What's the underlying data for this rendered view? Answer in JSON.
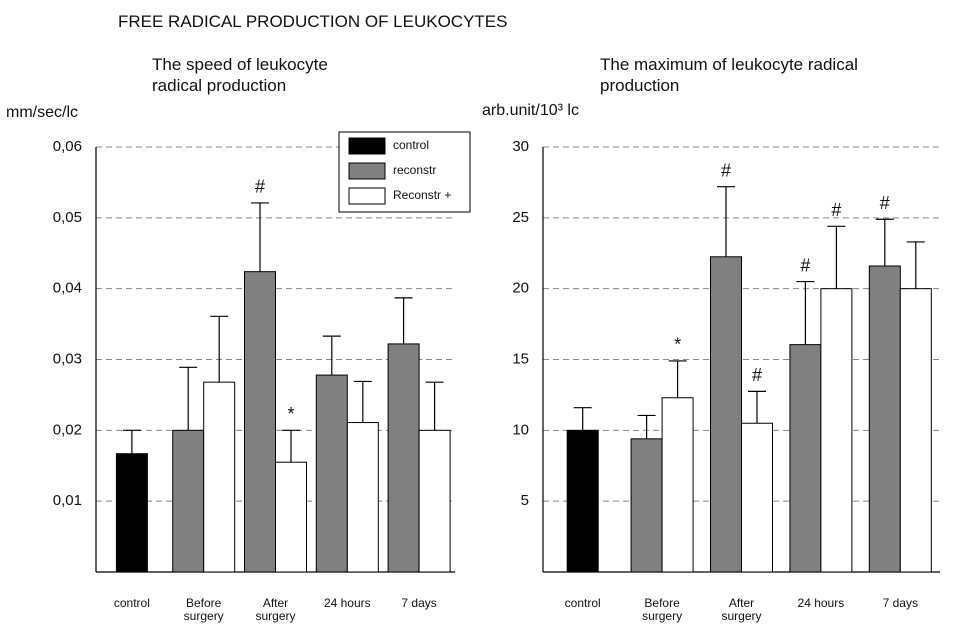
{
  "title": "FREE RADICAL PRODUCTION OF LEUKOCYTES",
  "chart_data": [
    {
      "type": "bar",
      "title": "The speed of leukocyte radical production",
      "y_label": "mm/sec/lc",
      "categories": [
        "control",
        "Before surgery",
        "After surgery",
        "24 hours",
        "7 days"
      ],
      "series": [
        {
          "name": "control",
          "color": "#000000",
          "values": [
            0.0167,
            null,
            null,
            null,
            null
          ],
          "errors": [
            0.0033,
            null,
            null,
            null,
            null
          ],
          "markers": [
            null,
            null,
            null,
            null,
            null
          ]
        },
        {
          "name": "reconstr",
          "color": "#808080",
          "values": [
            null,
            0.02,
            0.0424,
            0.0278,
            0.0322
          ],
          "errors": [
            null,
            0.0089,
            0.0097,
            0.0055,
            0.0065
          ],
          "markers": [
            null,
            null,
            "#",
            null,
            null
          ]
        },
        {
          "name": "Reconstr +",
          "color": "#ffffff",
          "values": [
            null,
            0.0268,
            0.0155,
            0.0211,
            0.02
          ],
          "errors": [
            null,
            0.0093,
            0.0045,
            0.0058,
            0.0068
          ],
          "markers": [
            null,
            null,
            "*",
            null,
            null
          ]
        }
      ],
      "ylim": [
        0,
        0.06
      ],
      "yticks": [
        {
          "value": 0.01,
          "label": "0,01"
        },
        {
          "value": 0.02,
          "label": "0,02"
        },
        {
          "value": 0.03,
          "label": "0,03"
        },
        {
          "value": 0.04,
          "label": "0,04"
        },
        {
          "value": 0.05,
          "label": "0,05"
        },
        {
          "value": 0.06,
          "label": "0,06"
        }
      ],
      "grid": true,
      "legend": "top-right"
    },
    {
      "type": "bar",
      "title": "The maximum of leukocyte radical production",
      "y_label": "arb.unit/10³ lc",
      "categories": [
        "control",
        "Before surgery",
        "After surgery",
        "24 hours",
        "7 days"
      ],
      "series": [
        {
          "name": "control",
          "color": "#000000",
          "values": [
            10,
            null,
            null,
            null,
            null
          ],
          "errors": [
            1.6,
            null,
            null,
            null,
            null
          ],
          "markers": [
            null,
            null,
            null,
            null,
            null
          ]
        },
        {
          "name": "reconstr",
          "color": "#808080",
          "values": [
            null,
            9.4,
            22.25,
            16.05,
            21.6
          ],
          "errors": [
            null,
            1.65,
            4.95,
            4.45,
            3.3
          ],
          "markers": [
            null,
            null,
            "#",
            "#",
            "#"
          ]
        },
        {
          "name": "Reconstr +",
          "color": "#ffffff",
          "values": [
            null,
            12.3,
            10.5,
            20,
            20
          ],
          "errors": [
            null,
            2.6,
            2.25,
            4.4,
            3.3
          ],
          "markers": [
            null,
            "*",
            "#",
            "#",
            null
          ]
        }
      ],
      "ylim": [
        0,
        30
      ],
      "yticks": [
        5,
        10,
        15,
        20,
        25,
        30
      ],
      "grid": true
    }
  ]
}
